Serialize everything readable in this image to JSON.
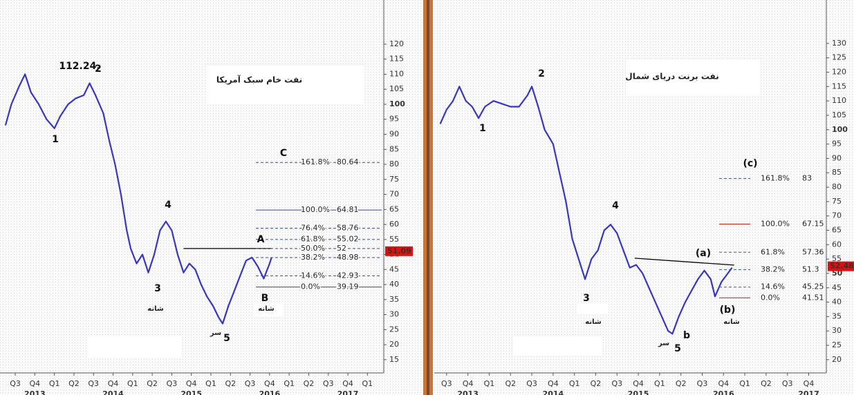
{
  "chart_data": [
    {
      "type": "line",
      "title": "نفت خام سبک آمریکا",
      "color": "#3535c8",
      "categories": [
        "Q3",
        "Q4",
        "Q1",
        "Q2",
        "Q3",
        "Q4",
        "Q1",
        "Q2",
        "Q3",
        "Q4",
        "Q1",
        "Q2",
        "Q3",
        "Q4",
        "Q1",
        "Q2",
        "Q3",
        "Q4",
        "Q1"
      ],
      "years": [
        "2013",
        "2014",
        "2015",
        "2016",
        "2017"
      ],
      "xlim": [
        -0.78,
        18.73
      ],
      "x": [
        -0.5,
        -0.2,
        0.2,
        0.5,
        0.8,
        1.2,
        1.6,
        2,
        2.3,
        2.7,
        3.1,
        3.5,
        3.8,
        4.1,
        4.5,
        4.8,
        5.1,
        5.4,
        5.7,
        5.9,
        6.2,
        6.5,
        6.8,
        7.1,
        7.4,
        7.7,
        8.0,
        8.3,
        8.6,
        8.9,
        9.2,
        9.5,
        9.8,
        10.1,
        10.4,
        10.6,
        10.9,
        11.2,
        11.5,
        11.8,
        12.1,
        12.4,
        12.7,
        13.0,
        13.1
      ],
      "values": [
        93,
        100,
        106,
        110,
        104,
        100,
        95,
        92,
        96,
        100,
        102,
        103,
        107,
        103,
        97,
        88,
        80,
        70,
        58,
        52,
        47,
        50,
        44,
        50,
        58,
        61,
        58,
        50,
        44,
        47,
        45,
        40,
        36,
        33,
        29,
        27,
        33,
        38,
        43,
        48,
        49,
        46,
        42,
        47,
        49
      ],
      "ylim": [
        10.6,
        134.7
      ],
      "yticks": [
        15,
        20,
        25,
        30,
        35,
        40,
        45,
        50,
        55,
        60,
        65,
        70,
        75,
        80,
        85,
        90,
        95,
        100,
        105,
        110,
        115,
        120
      ],
      "trendline": {
        "x": [
          8.6,
          13.1
        ],
        "values": [
          52,
          52
        ]
      },
      "last_price": 51.09,
      "last_price_color": "#e01010",
      "fib_levels": [
        {
          "pct": "161.8%",
          "value": 80.64,
          "color": "#3a4d8f",
          "line_style": "dashed"
        },
        {
          "pct": "100.0%",
          "value": 64.81,
          "color": "#3a4d8f",
          "line_style": "solid"
        },
        {
          "pct": "76.4%",
          "value": 58.76,
          "color": "#3a4d8f",
          "line_style": "dashed"
        },
        {
          "pct": "61.8%",
          "value": 55.02,
          "color": "#3a4d8f",
          "line_style": "dashed"
        },
        {
          "pct": "50.0%",
          "value": 52,
          "color": "#3a4d8f",
          "line_style": "dashed"
        },
        {
          "pct": "38.2%",
          "value": 48.98,
          "color": "#3a4d8f",
          "line_style": "dashed"
        },
        {
          "pct": "14.6%",
          "value": 42.93,
          "color": "#3a4d8f",
          "line_style": "dashed"
        },
        {
          "pct": "0.0%",
          "value": 39.19,
          "color": "#3a4d8f",
          "line_style": "solid"
        }
      ],
      "annotations": [
        "112.24,",
        "2",
        "1",
        "3",
        "4",
        "5",
        "A",
        "B",
        "C",
        "شانه",
        "شانه",
        "سر"
      ]
    },
    {
      "type": "line",
      "title": "نفت برنت دریای شمال",
      "color": "#3535c8",
      "categories": [
        "Q3",
        "Q4",
        "Q1",
        "Q2",
        "Q3",
        "Q4",
        "Q1",
        "Q2",
        "Q3",
        "Q4",
        "Q1",
        "Q2",
        "Q3",
        "Q4",
        "Q1",
        "Q2",
        "Q3",
        "Q4"
      ],
      "years": [
        "2013",
        "2014",
        "2015",
        "2016",
        "2017"
      ],
      "xlim": [
        -0.58,
        17.73
      ],
      "x": [
        -0.3,
        0,
        0.3,
        0.6,
        0.9,
        1.2,
        1.5,
        1.8,
        2.2,
        2.6,
        3,
        3.4,
        3.8,
        4,
        4.3,
        4.6,
        5,
        5.3,
        5.6,
        5.9,
        6.2,
        6.5,
        6.8,
        7.1,
        7.4,
        7.7,
        8,
        8.3,
        8.6,
        8.9,
        9.2,
        9.5,
        9.8,
        10.1,
        10.4,
        10.6,
        10.9,
        11.2,
        11.5,
        11.8,
        12.1,
        12.4,
        12.6,
        12.9,
        13.2,
        13.4
      ],
      "values": [
        102,
        107,
        110,
        115,
        110,
        108,
        104,
        108,
        110,
        109,
        108,
        108,
        112,
        115,
        108,
        100,
        95,
        85,
        75,
        62,
        55,
        48,
        55,
        58,
        65,
        67,
        64,
        58,
        52,
        53,
        50,
        45,
        40,
        35,
        30,
        29,
        35,
        40,
        44,
        48,
        51,
        48,
        42,
        47,
        50,
        52
      ],
      "ylim": [
        15.4,
        145.1
      ],
      "yticks": [
        20,
        25,
        30,
        35,
        40,
        45,
        50,
        55,
        60,
        65,
        70,
        75,
        80,
        85,
        90,
        95,
        100,
        105,
        110,
        115,
        120,
        125,
        130
      ],
      "trendline": {
        "x": [
          8.83,
          13.5
        ],
        "values": [
          55.3,
          52.9
        ]
      },
      "last_price": 52.48,
      "last_price_color": "#e01010",
      "fib_levels": [
        {
          "pct": "161.8%",
          "value": 83,
          "color": "#3a5aa8",
          "line_style": "dashed"
        },
        {
          "pct": "100.0%",
          "value": 67.15,
          "color": "#b02020",
          "line_style": "solid"
        },
        {
          "pct": "61.8%",
          "value": 57.36,
          "color": "#3a5aa8",
          "line_style": "dashed"
        },
        {
          "pct": "38.2%",
          "value": 51.3,
          "color": "#3a5aa8",
          "line_style": "dashed"
        },
        {
          "pct": "14.6%",
          "value": 45.25,
          "color": "#3a5aa8",
          "line_style": "dashed"
        },
        {
          "pct": "0.0%",
          "value": 41.51,
          "color": "#b02020",
          "line_style": "solid"
        }
      ],
      "annotations": [
        "2",
        "1",
        "3",
        "4",
        "5",
        "b",
        "(a)",
        "(b)",
        "(c)",
        "شانه",
        "شانه",
        "سر"
      ]
    }
  ]
}
